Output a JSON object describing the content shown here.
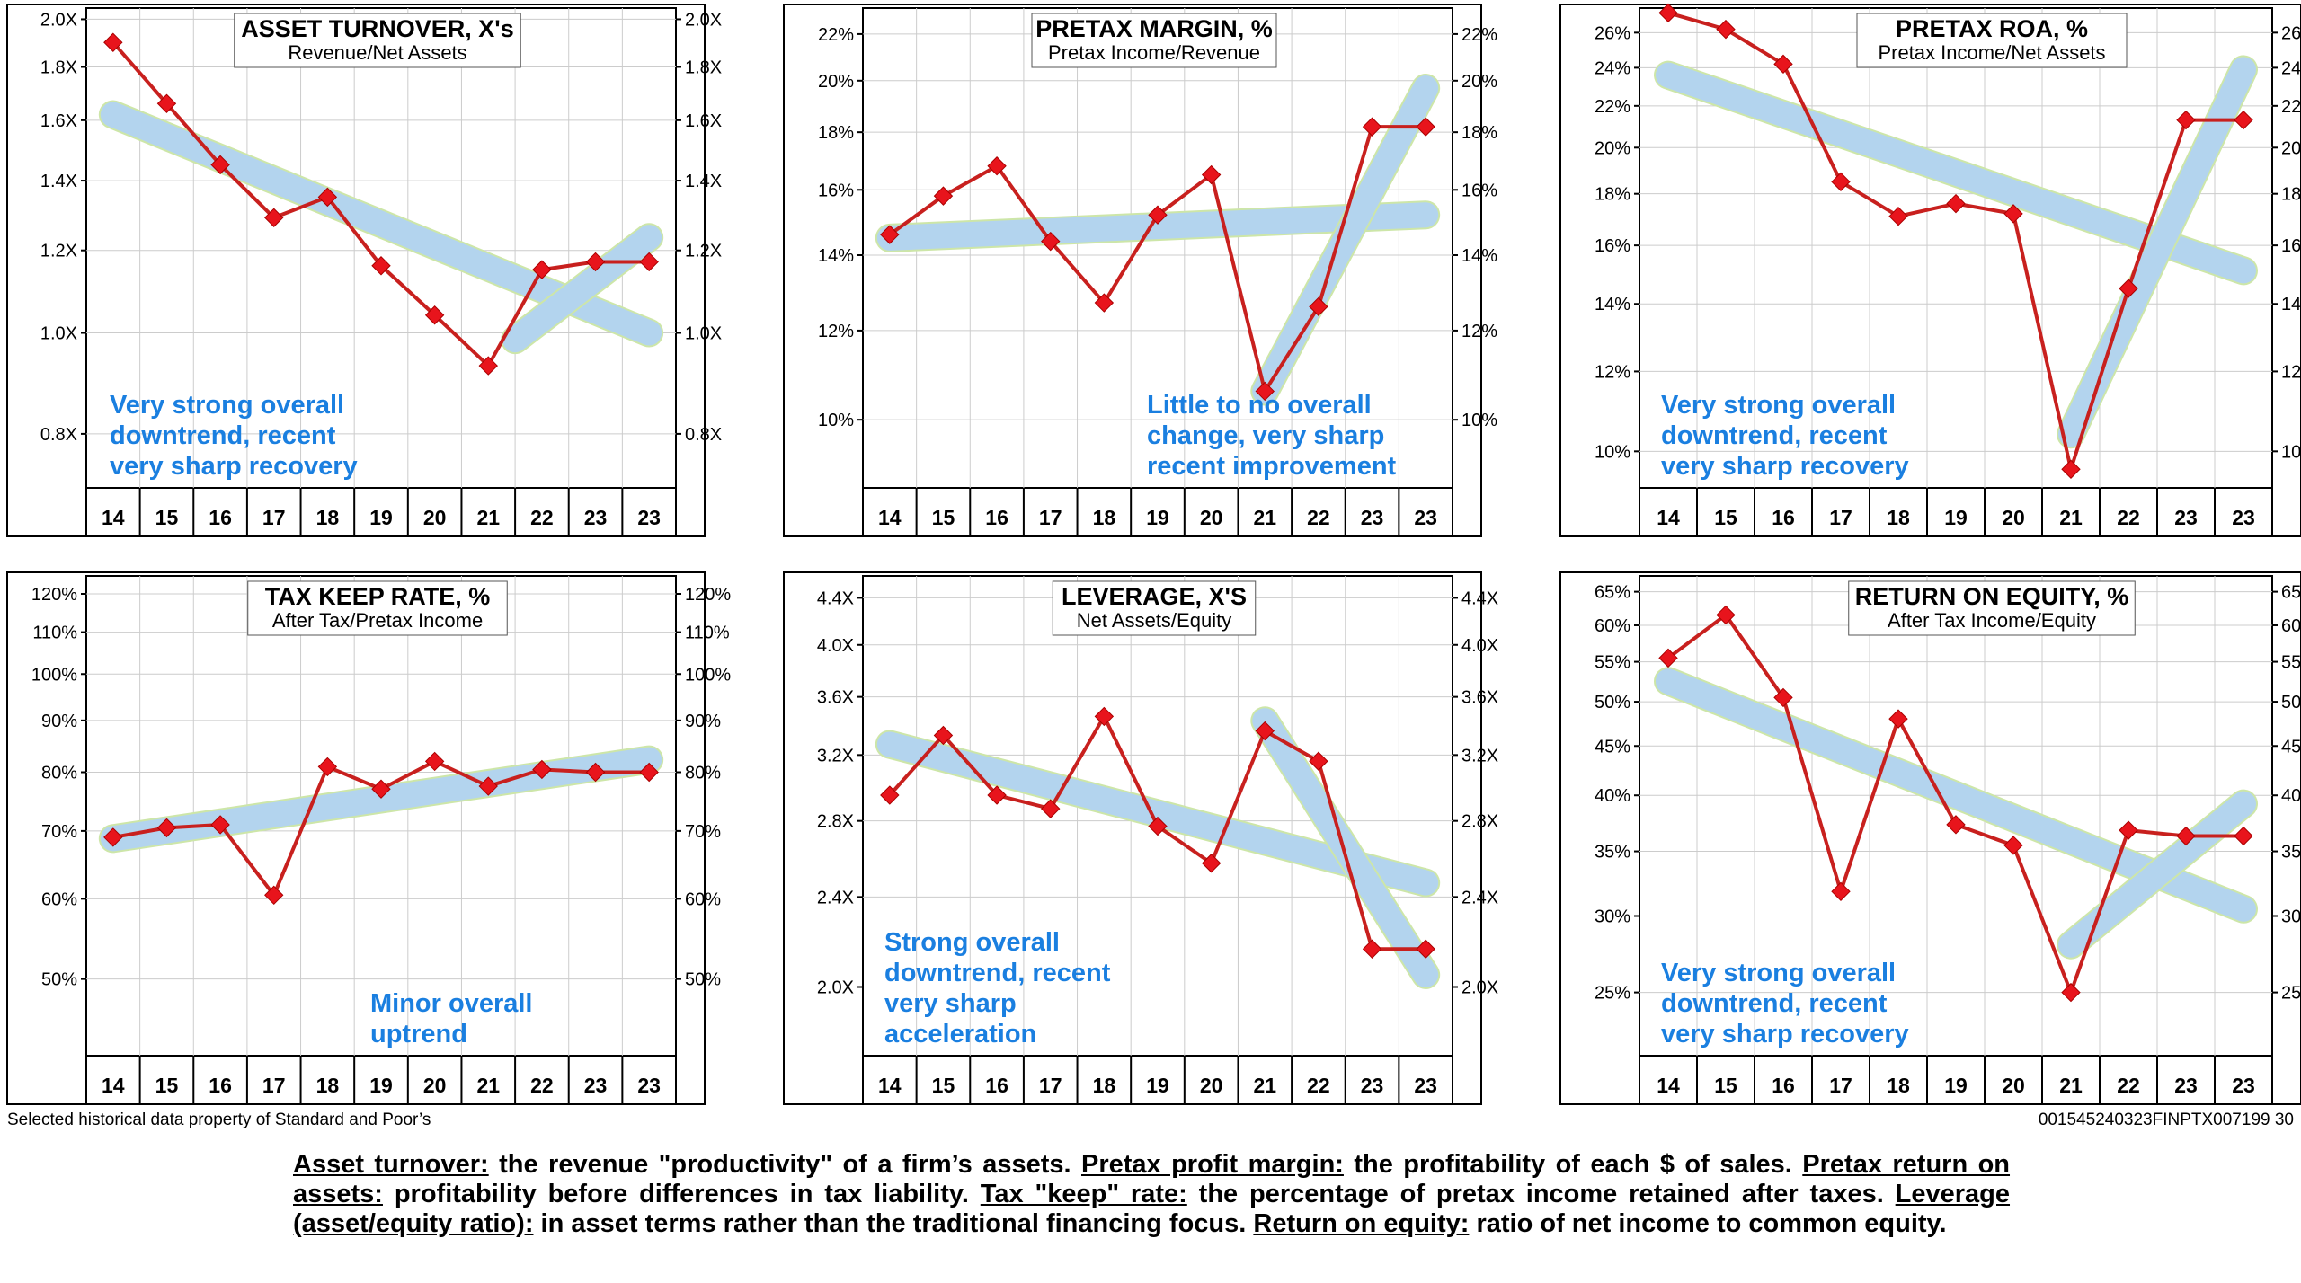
{
  "footer": {
    "source": "Selected historical data property of Standard and Poor’s",
    "code": "001545240323FINPTX007199  30"
  },
  "caption": [
    {
      "term": "Asset turnover:",
      "text": " the revenue \"productivity\" of a firm’s assets. "
    },
    {
      "term": "Pretax profit margin:",
      "text": " the profitability of each $ of sales. "
    },
    {
      "term": "Pretax return on assets:",
      "text": " profitability before differences in tax liability. "
    },
    {
      "term": "Tax \"keep\" rate:",
      "text": " the percentage of pretax income retained after taxes. "
    },
    {
      "term": "Leverage (asset/equity ratio):",
      "text": " in asset terms rather than the traditional financing focus. "
    },
    {
      "term": "Return on equity:",
      "text": " ratio of net income to common equity."
    }
  ],
  "colors": {
    "series": "#c8201e",
    "marker": "#e8141c",
    "trend": "#b3d4ee",
    "trend_edge": "#cde6a8",
    "annotation": "#1a7fe0",
    "grid": "#cccccc"
  },
  "chart_data": [
    {
      "type": "line",
      "scale": "log",
      "title": "ASSET TURNOVER, X's",
      "subtitle": "Revenue/Net Assets",
      "categories": [
        "14",
        "15",
        "16",
        "17",
        "18",
        "19",
        "20",
        "21",
        "22",
        "23",
        "23"
      ],
      "values": [
        1.9,
        1.66,
        1.45,
        1.29,
        1.35,
        1.16,
        1.04,
        0.93,
        1.15,
        1.17,
        1.17
      ],
      "ticks": [
        0.8,
        1.0,
        1.2,
        1.4,
        1.6,
        1.8,
        2.0
      ],
      "tick_labels": [
        "0.8X",
        "1.0X",
        "1.2X",
        "1.4X",
        "1.6X",
        "1.8X",
        "2.0X"
      ],
      "ylim": [
        0.71,
        2.05
      ],
      "trends": [
        {
          "from": 0,
          "to": 10,
          "start": 1.62,
          "end": 1.0
        },
        {
          "from": 7.5,
          "to": 10,
          "start": 0.985,
          "end": 1.235
        }
      ],
      "annotation": [
        "Very strong overall",
        "downtrend, recent",
        "very sharp recovery"
      ]
    },
    {
      "type": "line",
      "scale": "log",
      "title": "PRETAX MARGIN, %",
      "subtitle": "Pretax Income/Revenue",
      "categories": [
        "14",
        "15",
        "16",
        "17",
        "18",
        "19",
        "20",
        "21",
        "22",
        "23",
        "23"
      ],
      "values": [
        14.6,
        15.8,
        16.8,
        14.4,
        12.7,
        15.2,
        16.5,
        10.6,
        12.6,
        18.2,
        18.2
      ],
      "ticks": [
        10,
        12,
        14,
        16,
        18,
        20,
        22
      ],
      "tick_labels": [
        "10%",
        "12%",
        "14%",
        "16%",
        "18%",
        "20%",
        "22%"
      ],
      "ylim": [
        8.7,
        23.2
      ],
      "trends": [
        {
          "from": 0,
          "to": 10,
          "start": 14.5,
          "end": 15.2
        },
        {
          "from": 7,
          "to": 10,
          "start": 10.6,
          "end": 19.7
        }
      ],
      "annotation": [
        "Little to no overall",
        "change, very sharp",
        "recent improvement"
      ]
    },
    {
      "type": "line",
      "scale": "log",
      "title": "PRETAX ROA, %",
      "subtitle": "Pretax Income/Net Assets",
      "categories": [
        "14",
        "15",
        "16",
        "17",
        "18",
        "19",
        "20",
        "21",
        "22",
        "23",
        "23"
      ],
      "values": [
        27.2,
        26.2,
        24.2,
        18.5,
        17.1,
        17.6,
        17.2,
        9.6,
        14.5,
        21.3,
        21.3
      ],
      "ticks": [
        10,
        12,
        14,
        16,
        18,
        20,
        22,
        24,
        26
      ],
      "tick_labels": [
        "10%",
        "12%",
        "14%",
        "16%",
        "18%",
        "20%",
        "22%",
        "24%",
        "26%"
      ],
      "ylim": [
        9.2,
        27.5
      ],
      "trends": [
        {
          "from": 0,
          "to": 10,
          "start": 23.6,
          "end": 15.1
        },
        {
          "from": 7,
          "to": 10,
          "start": 10.4,
          "end": 23.9
        }
      ],
      "annotation": [
        "Very strong overall",
        "downtrend, recent",
        "very sharp recovery"
      ]
    },
    {
      "type": "line",
      "scale": "log",
      "title": "TAX KEEP RATE, %",
      "subtitle": "After Tax/Pretax Income",
      "categories": [
        "14",
        "15",
        "16",
        "17",
        "18",
        "19",
        "20",
        "21",
        "22",
        "23",
        "23"
      ],
      "values": [
        69,
        70.5,
        71,
        60.5,
        81,
        77,
        82,
        77.5,
        80.5,
        80,
        80
      ],
      "ticks": [
        50,
        60,
        70,
        80,
        90,
        100,
        110,
        120
      ],
      "tick_labels": [
        "50%",
        "60%",
        "70%",
        "80%",
        "90%",
        "100%",
        "110%",
        "120%"
      ],
      "ylim": [
        42,
        125
      ],
      "trends": [
        {
          "from": 0,
          "to": 10,
          "start": 68.8,
          "end": 82.3
        }
      ],
      "annotation": [
        "Minor overall",
        "uptrend"
      ]
    },
    {
      "type": "line",
      "scale": "log",
      "title": "LEVERAGE, X'S",
      "subtitle": "Net Assets/Equity",
      "categories": [
        "14",
        "15",
        "16",
        "17",
        "18",
        "19",
        "20",
        "21",
        "22",
        "23",
        "23"
      ],
      "values": [
        2.95,
        3.33,
        2.95,
        2.87,
        3.46,
        2.77,
        2.57,
        3.36,
        3.16,
        2.16,
        2.16
      ],
      "ticks": [
        2.0,
        2.4,
        2.8,
        3.2,
        3.6,
        4.0,
        4.4
      ],
      "tick_labels": [
        "2.0X",
        "2.4X",
        "2.8X",
        "3.2X",
        "3.6X",
        "4.0X",
        "4.4X"
      ],
      "ylim": [
        1.74,
        4.6
      ],
      "trends": [
        {
          "from": 0,
          "to": 10,
          "start": 3.27,
          "end": 2.47
        },
        {
          "from": 7,
          "to": 10,
          "start": 3.43,
          "end": 2.05
        }
      ],
      "annotation": [
        "Strong overall",
        "downtrend, recent",
        "very sharp",
        "acceleration"
      ]
    },
    {
      "type": "line",
      "scale": "log",
      "title": "RETURN ON EQUITY, %",
      "subtitle": "After Tax Income/Equity",
      "categories": [
        "14",
        "15",
        "16",
        "17",
        "18",
        "19",
        "20",
        "21",
        "22",
        "23",
        "23"
      ],
      "values": [
        55.5,
        61.5,
        50.5,
        31.8,
        48.0,
        37.3,
        35.5,
        25.0,
        36.8,
        36.3,
        36.3
      ],
      "ticks": [
        25,
        30,
        35,
        40,
        45,
        50,
        55,
        60,
        65
      ],
      "tick_labels": [
        "25%",
        "30%",
        "35%",
        "40%",
        "45%",
        "50%",
        "55%",
        "60%",
        "65%"
      ],
      "ylim": [
        21.5,
        67.5
      ],
      "trends": [
        {
          "from": 0,
          "to": 10,
          "start": 52.5,
          "end": 30.5
        },
        {
          "from": 7,
          "to": 10,
          "start": 28.0,
          "end": 39.2
        }
      ],
      "annotation": [
        "Very strong overall",
        "downtrend, recent",
        "very sharp recovery"
      ]
    }
  ]
}
